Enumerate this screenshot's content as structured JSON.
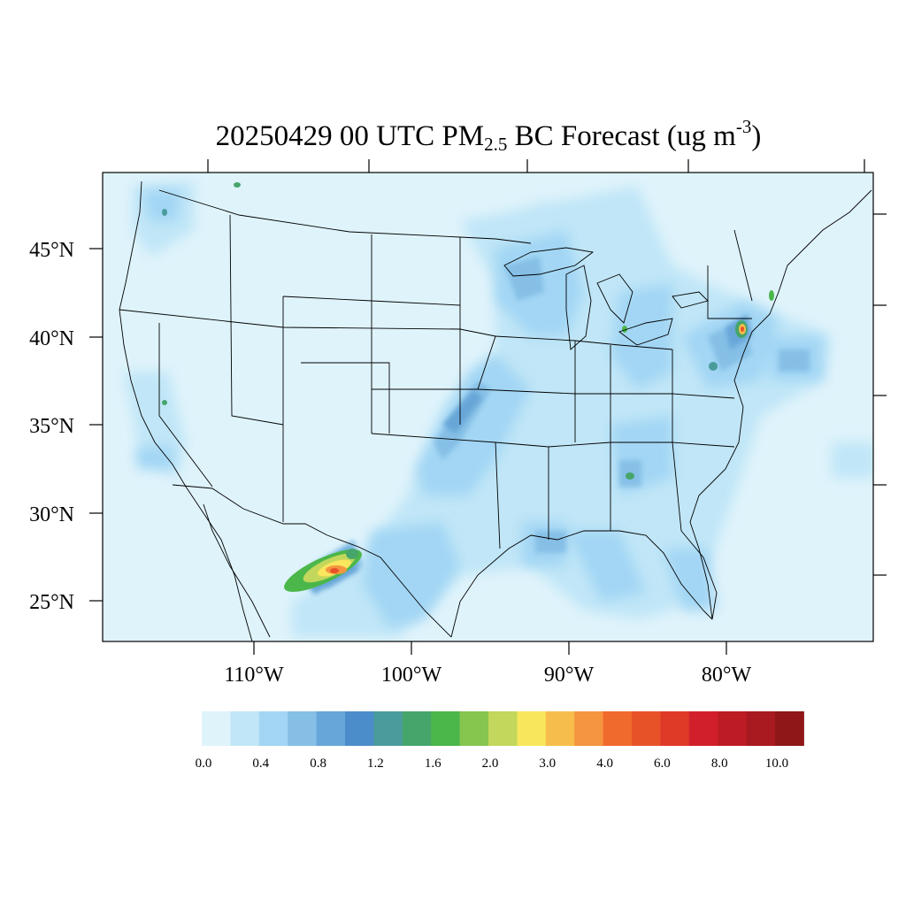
{
  "title": {
    "date_time": "20250429 00 UTC",
    "species": "PM",
    "species_sub": "2.5",
    "rest": "BC Forecast (ug m",
    "unit_exp": "-3",
    "close": ")"
  },
  "lat_labels": [
    "45°N",
    "40°N",
    "35°N",
    "30°N",
    "25°N"
  ],
  "lon_labels": [
    "110°W",
    "100°W",
    "90°W",
    "80°W"
  ],
  "colorbar": {
    "colors": [
      "#dff3fb",
      "#c0e6f7",
      "#a2d6f4",
      "#85bfe6",
      "#67a6d8",
      "#4b8ccb",
      "#4a9c9c",
      "#46a56b",
      "#4bb74a",
      "#86c54e",
      "#c2d75b",
      "#f8e65c",
      "#f7bd4c",
      "#f5953f",
      "#f16a2d",
      "#e85229",
      "#de3a27",
      "#d1202b",
      "#bd1c24",
      "#a81a1f",
      "#8f1717"
    ],
    "labels": [
      "0.0",
      "0.4",
      "0.8",
      "1.2",
      "1.6",
      "2.0",
      "3.0",
      "4.0",
      "6.0",
      "8.0",
      "10.0"
    ]
  }
}
